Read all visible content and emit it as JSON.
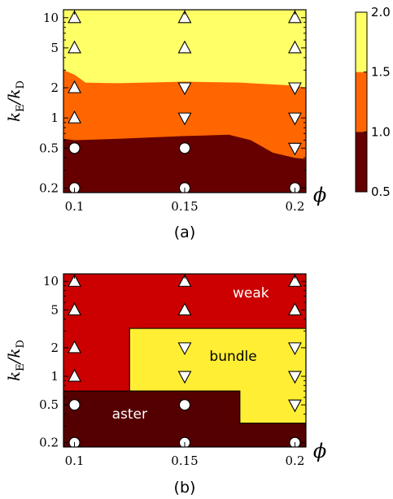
{
  "chart_data": [
    {
      "panel": "(a)",
      "type": "contour",
      "x_axis": {
        "label": "ϕ",
        "ticks": [
          0.1,
          0.15,
          0.2
        ],
        "range": [
          0.095,
          0.205
        ]
      },
      "y_axis": {
        "label": "kE/kD",
        "scale": "log",
        "ticks": [
          0.2,
          0.5,
          1,
          2,
          5,
          10
        ],
        "range": [
          0.18,
          12
        ]
      },
      "colorbar": {
        "ticks": [
          "2.0",
          "1.5",
          "1.0",
          "0.5"
        ],
        "range": [
          0.5,
          2.0
        ],
        "colors": [
          "#ffff66",
          "#ff6600",
          "#660000"
        ]
      },
      "boundaries": {
        "upper": [
          [
            0.095,
            3.0
          ],
          [
            0.1,
            2.7
          ],
          [
            0.105,
            2.25
          ],
          [
            0.12,
            2.22
          ],
          [
            0.15,
            2.3
          ],
          [
            0.175,
            2.25
          ],
          [
            0.2,
            2.1
          ],
          [
            0.205,
            2.0
          ]
        ],
        "lower": [
          [
            0.095,
            0.62
          ],
          [
            0.1,
            0.6
          ],
          [
            0.12,
            0.62
          ],
          [
            0.15,
            0.66
          ],
          [
            0.17,
            0.68
          ],
          [
            0.18,
            0.6
          ],
          [
            0.19,
            0.45
          ],
          [
            0.2,
            0.4
          ],
          [
            0.205,
            0.39
          ]
        ]
      },
      "markers": [
        {
          "x": 0.1,
          "y": 10,
          "shape": "triangle-up"
        },
        {
          "x": 0.1,
          "y": 5,
          "shape": "triangle-up"
        },
        {
          "x": 0.1,
          "y": 2,
          "shape": "triangle-up"
        },
        {
          "x": 0.1,
          "y": 1,
          "shape": "triangle-up"
        },
        {
          "x": 0.1,
          "y": 0.5,
          "shape": "circle"
        },
        {
          "x": 0.1,
          "y": 0.2,
          "shape": "circle"
        },
        {
          "x": 0.15,
          "y": 10,
          "shape": "triangle-up"
        },
        {
          "x": 0.15,
          "y": 5,
          "shape": "triangle-up"
        },
        {
          "x": 0.15,
          "y": 2,
          "shape": "triangle-down"
        },
        {
          "x": 0.15,
          "y": 1,
          "shape": "triangle-down"
        },
        {
          "x": 0.15,
          "y": 0.5,
          "shape": "circle"
        },
        {
          "x": 0.15,
          "y": 0.2,
          "shape": "circle"
        },
        {
          "x": 0.2,
          "y": 10,
          "shape": "triangle-up"
        },
        {
          "x": 0.2,
          "y": 5,
          "shape": "triangle-up"
        },
        {
          "x": 0.2,
          "y": 2,
          "shape": "triangle-down"
        },
        {
          "x": 0.2,
          "y": 1,
          "shape": "triangle-down"
        },
        {
          "x": 0.2,
          "y": 0.5,
          "shape": "triangle-down"
        },
        {
          "x": 0.2,
          "y": 0.2,
          "shape": "circle"
        }
      ]
    },
    {
      "panel": "(b)",
      "type": "phase-diagram",
      "x_axis": {
        "label": "ϕ",
        "ticks": [
          0.1,
          0.15,
          0.2
        ],
        "range": [
          0.095,
          0.205
        ]
      },
      "y_axis": {
        "label": "kE/kD",
        "scale": "log",
        "ticks": [
          0.2,
          0.5,
          1,
          2,
          5,
          10
        ],
        "range": [
          0.18,
          12
        ]
      },
      "regions": [
        {
          "name": "weak",
          "color": "#cc0000",
          "label_color": "#ffffff",
          "label_at": [
            0.18,
            6.8
          ]
        },
        {
          "name": "bundle",
          "color": "#ffee33",
          "label_color": "#000000",
          "label_at": [
            0.172,
            1.45
          ],
          "polygon": [
            [
              0.125,
              0.32
            ],
            [
              0.125,
              3.2
            ],
            [
              0.205,
              3.2
            ],
            [
              0.205,
              0.32
            ],
            [
              0.175,
              0.32
            ],
            [
              0.175,
              0.7
            ],
            [
              0.125,
              0.7
            ]
          ]
        },
        {
          "name": "aster",
          "color": "#550000",
          "label_color": "#ffffff",
          "label_at": [
            0.125,
            0.36
          ],
          "polygon": [
            [
              0.095,
              0.18
            ],
            [
              0.095,
              0.7
            ],
            [
              0.175,
              0.7
            ],
            [
              0.175,
              0.32
            ],
            [
              0.205,
              0.32
            ],
            [
              0.205,
              0.18
            ]
          ]
        }
      ],
      "markers": [
        {
          "x": 0.1,
          "y": 10,
          "shape": "triangle-up"
        },
        {
          "x": 0.1,
          "y": 5,
          "shape": "triangle-up"
        },
        {
          "x": 0.1,
          "y": 2,
          "shape": "triangle-up"
        },
        {
          "x": 0.1,
          "y": 1,
          "shape": "triangle-up"
        },
        {
          "x": 0.1,
          "y": 0.5,
          "shape": "circle"
        },
        {
          "x": 0.1,
          "y": 0.2,
          "shape": "circle"
        },
        {
          "x": 0.15,
          "y": 10,
          "shape": "triangle-up"
        },
        {
          "x": 0.15,
          "y": 5,
          "shape": "triangle-up"
        },
        {
          "x": 0.15,
          "y": 2,
          "shape": "triangle-down"
        },
        {
          "x": 0.15,
          "y": 1,
          "shape": "triangle-down"
        },
        {
          "x": 0.15,
          "y": 0.5,
          "shape": "circle"
        },
        {
          "x": 0.15,
          "y": 0.2,
          "shape": "circle"
        },
        {
          "x": 0.2,
          "y": 10,
          "shape": "triangle-up"
        },
        {
          "x": 0.2,
          "y": 5,
          "shape": "triangle-up"
        },
        {
          "x": 0.2,
          "y": 2,
          "shape": "triangle-down"
        },
        {
          "x": 0.2,
          "y": 1,
          "shape": "triangle-down"
        },
        {
          "x": 0.2,
          "y": 0.5,
          "shape": "triangle-down"
        },
        {
          "x": 0.2,
          "y": 0.2,
          "shape": "circle"
        }
      ]
    }
  ]
}
